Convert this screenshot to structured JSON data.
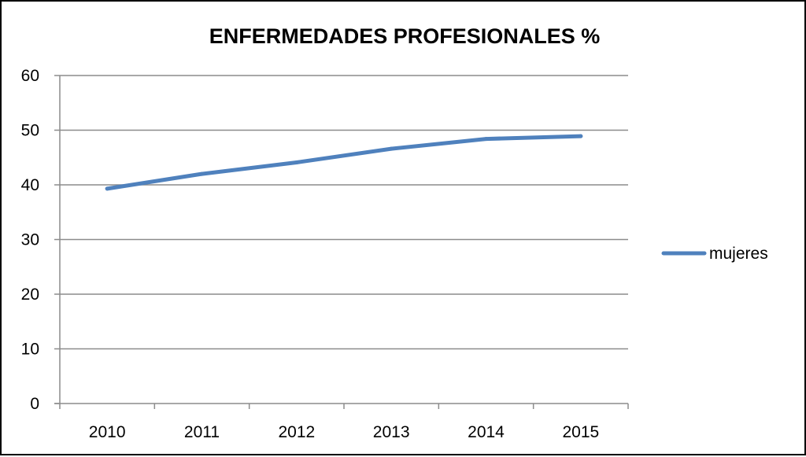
{
  "chart_data": {
    "type": "line",
    "title": "ENFERMEDADES PROFESIONALES %",
    "xlabel": "",
    "ylabel": "",
    "categories": [
      "2010",
      "2011",
      "2012",
      "2013",
      "2014",
      "2015"
    ],
    "series": [
      {
        "name": "mujeres",
        "values": [
          39.3,
          42.0,
          44.1,
          46.6,
          48.4,
          48.9
        ],
        "color": "#4F81BD"
      }
    ],
    "ylim": [
      0,
      60
    ],
    "yticks": [
      0,
      10,
      20,
      30,
      40,
      50,
      60
    ],
    "grid": true,
    "legend_position": "right"
  }
}
